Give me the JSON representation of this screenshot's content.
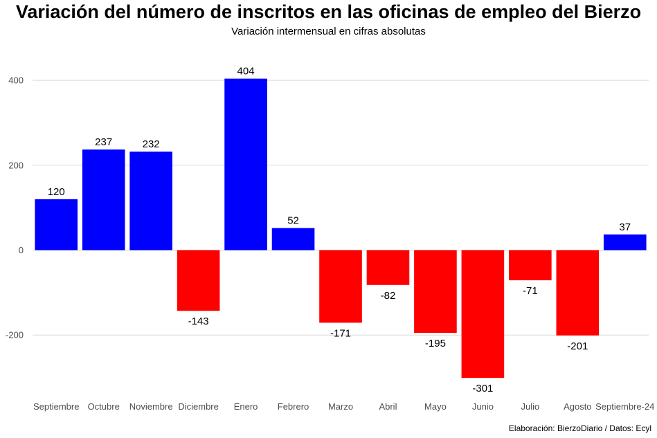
{
  "chart_data": {
    "type": "bar",
    "title": "Variación del número de inscritos en las oficinas de empleo del Bierzo",
    "subtitle": "Variación intermensual en cifras absolutas",
    "caption": "Elaboración: BierzoDiario / Datos: Ecyl",
    "xlabel": "",
    "ylabel": "",
    "categories": [
      "Septiembre",
      "Octubre",
      "Noviembre",
      "Diciembre",
      "Enero",
      "Febrero",
      "Marzo",
      "Abril",
      "Mayo",
      "Junio",
      "Julio",
      "Agosto",
      "Septiembre-24"
    ],
    "values": [
      120,
      237,
      232,
      -143,
      404,
      52,
      -171,
      -82,
      -195,
      -301,
      -71,
      -201,
      37
    ],
    "ylim": [
      -350,
      480
    ],
    "yticks": [
      -200,
      0,
      200,
      400
    ],
    "grid": true,
    "legend": "none",
    "colors": {
      "positive": "#0000ff",
      "negative": "#ff0000",
      "grid": "#d9d9d9"
    }
  }
}
